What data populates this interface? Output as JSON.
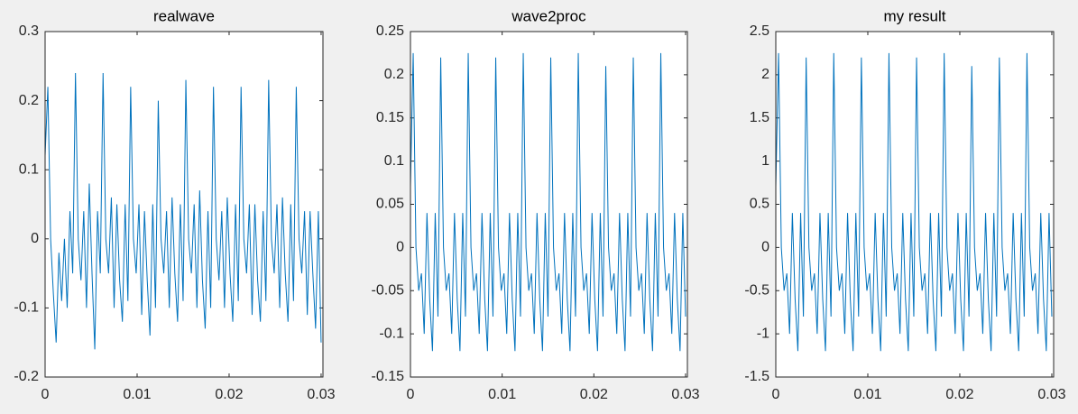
{
  "chart_data": [
    {
      "type": "line",
      "title": "realwave",
      "x": [
        0,
        0.0003,
        0.0006,
        0.0009,
        0.0012,
        0.0015,
        0.0018,
        0.0021,
        0.0024,
        0.0027,
        0.003,
        0.0033,
        0.0036,
        0.0039,
        0.0042,
        0.0045,
        0.0048,
        0.0051,
        0.0054,
        0.0057,
        0.006,
        0.0063,
        0.0066,
        0.0069,
        0.0072,
        0.0075,
        0.0078,
        0.0081,
        0.0084,
        0.0087,
        0.009,
        0.0093,
        0.0096,
        0.0099,
        0.0102,
        0.0105,
        0.0108,
        0.0111,
        0.0114,
        0.0117,
        0.012,
        0.0123,
        0.0126,
        0.0129,
        0.0132,
        0.0135,
        0.0138,
        0.0141,
        0.0144,
        0.0147,
        0.015,
        0.0153,
        0.0156,
        0.0159,
        0.0162,
        0.0165,
        0.0168,
        0.0171,
        0.0174,
        0.0177,
        0.018,
        0.0183,
        0.0186,
        0.0189,
        0.0192,
        0.0195,
        0.0198,
        0.0201,
        0.0204,
        0.0207,
        0.021,
        0.0213,
        0.0216,
        0.0219,
        0.0222,
        0.0225,
        0.0228,
        0.0231,
        0.0234,
        0.0237,
        0.024,
        0.0243,
        0.0246,
        0.0249,
        0.0252,
        0.0255,
        0.0258,
        0.0261,
        0.0264,
        0.0267,
        0.027,
        0.0273,
        0.0276,
        0.0279,
        0.0282,
        0.0285,
        0.0288,
        0.0291,
        0.0294,
        0.0297,
        0.03
      ],
      "series": [
        {
          "name": "realwave",
          "color": "#0072bd",
          "values": [
            0.12,
            0.22,
            0.0,
            -0.08,
            -0.15,
            -0.02,
            -0.09,
            0.0,
            -0.1,
            0.04,
            -0.05,
            0.24,
            0.0,
            -0.06,
            0.04,
            -0.1,
            0.08,
            -0.05,
            -0.16,
            0.04,
            -0.05,
            0.24,
            0.0,
            -0.05,
            0.06,
            -0.1,
            0.05,
            -0.06,
            -0.12,
            0.05,
            -0.09,
            0.22,
            0.0,
            -0.05,
            0.05,
            -0.11,
            0.04,
            -0.06,
            -0.14,
            0.05,
            -0.1,
            0.2,
            0.0,
            -0.05,
            0.04,
            -0.1,
            0.06,
            -0.05,
            -0.12,
            0.05,
            -0.09,
            0.23,
            0.0,
            -0.05,
            0.05,
            -0.1,
            0.07,
            -0.06,
            -0.13,
            0.04,
            -0.1,
            0.22,
            0.0,
            -0.06,
            0.04,
            -0.1,
            0.06,
            -0.05,
            -0.12,
            0.05,
            -0.09,
            0.22,
            0.0,
            -0.05,
            0.05,
            -0.11,
            0.05,
            -0.06,
            -0.12,
            0.04,
            -0.09,
            0.23,
            0.0,
            -0.05,
            0.05,
            -0.1,
            0.06,
            -0.05,
            -0.12,
            0.05,
            -0.09,
            0.22,
            0.0,
            -0.05,
            0.04,
            -0.11,
            0.04,
            -0.05,
            -0.13,
            0.04,
            -0.15
          ]
        }
      ],
      "xlim": [
        0,
        0.0302
      ],
      "ylim": [
        -0.2,
        0.3
      ],
      "xticks": [
        0,
        0.01,
        0.02,
        0.03
      ],
      "yticks": [
        -0.2,
        -0.1,
        0,
        0.1,
        0.2,
        0.3
      ]
    },
    {
      "type": "line",
      "title": "wave2proc",
      "x": [
        0,
        0.0003,
        0.0006,
        0.0009,
        0.0012,
        0.0015,
        0.0018,
        0.0021,
        0.0024,
        0.0027,
        0.003,
        0.0033,
        0.0036,
        0.0039,
        0.0042,
        0.0045,
        0.0048,
        0.0051,
        0.0054,
        0.0057,
        0.006,
        0.0063,
        0.0066,
        0.0069,
        0.0072,
        0.0075,
        0.0078,
        0.0081,
        0.0084,
        0.0087,
        0.009,
        0.0093,
        0.0096,
        0.0099,
        0.0102,
        0.0105,
        0.0108,
        0.0111,
        0.0114,
        0.0117,
        0.012,
        0.0123,
        0.0126,
        0.0129,
        0.0132,
        0.0135,
        0.0138,
        0.0141,
        0.0144,
        0.0147,
        0.015,
        0.0153,
        0.0156,
        0.0159,
        0.0162,
        0.0165,
        0.0168,
        0.0171,
        0.0174,
        0.0177,
        0.018,
        0.0183,
        0.0186,
        0.0189,
        0.0192,
        0.0195,
        0.0198,
        0.0201,
        0.0204,
        0.0207,
        0.021,
        0.0213,
        0.0216,
        0.0219,
        0.0222,
        0.0225,
        0.0228,
        0.0231,
        0.0234,
        0.0237,
        0.024,
        0.0243,
        0.0246,
        0.0249,
        0.0252,
        0.0255,
        0.0258,
        0.0261,
        0.0264,
        0.0267,
        0.027,
        0.0273,
        0.0276,
        0.0279,
        0.0282,
        0.0285,
        0.0288,
        0.0291,
        0.0294,
        0.0297,
        0.03
      ],
      "series": [
        {
          "name": "wave2proc",
          "color": "#0072bd",
          "values": [
            0.07,
            0.225,
            0.0,
            -0.05,
            -0.03,
            -0.1,
            0.04,
            -0.06,
            -0.12,
            0.04,
            -0.08,
            0.22,
            0.0,
            -0.05,
            -0.03,
            -0.1,
            0.04,
            -0.06,
            -0.12,
            0.04,
            -0.08,
            0.225,
            0.0,
            -0.05,
            -0.03,
            -0.1,
            0.04,
            -0.06,
            -0.12,
            0.04,
            -0.08,
            0.22,
            0.0,
            -0.05,
            -0.03,
            -0.1,
            0.04,
            -0.06,
            -0.12,
            0.04,
            -0.08,
            0.225,
            0.0,
            -0.05,
            -0.03,
            -0.1,
            0.04,
            -0.06,
            -0.12,
            0.04,
            -0.08,
            0.22,
            0.0,
            -0.05,
            -0.03,
            -0.1,
            0.04,
            -0.06,
            -0.12,
            0.04,
            -0.08,
            0.225,
            0.0,
            -0.05,
            -0.03,
            -0.1,
            0.04,
            -0.06,
            -0.12,
            0.04,
            -0.08,
            0.21,
            0.0,
            -0.05,
            -0.03,
            -0.1,
            0.04,
            -0.06,
            -0.12,
            0.04,
            -0.08,
            0.22,
            0.0,
            -0.05,
            -0.03,
            -0.1,
            0.04,
            -0.06,
            -0.12,
            0.04,
            -0.08,
            0.225,
            0.0,
            -0.05,
            -0.03,
            -0.1,
            0.04,
            -0.06,
            -0.12,
            0.04,
            -0.08
          ]
        }
      ],
      "xlim": [
        0,
        0.0302
      ],
      "ylim": [
        -0.15,
        0.25
      ],
      "xticks": [
        0,
        0.01,
        0.02,
        0.03
      ],
      "yticks": [
        -0.15,
        -0.1,
        -0.05,
        0,
        0.05,
        0.1,
        0.15,
        0.2,
        0.25
      ]
    },
    {
      "type": "line",
      "title": "my result",
      "x": [
        0,
        0.0003,
        0.0006,
        0.0009,
        0.0012,
        0.0015,
        0.0018,
        0.0021,
        0.0024,
        0.0027,
        0.003,
        0.0033,
        0.0036,
        0.0039,
        0.0042,
        0.0045,
        0.0048,
        0.0051,
        0.0054,
        0.0057,
        0.006,
        0.0063,
        0.0066,
        0.0069,
        0.0072,
        0.0075,
        0.0078,
        0.0081,
        0.0084,
        0.0087,
        0.009,
        0.0093,
        0.0096,
        0.0099,
        0.0102,
        0.0105,
        0.0108,
        0.0111,
        0.0114,
        0.0117,
        0.012,
        0.0123,
        0.0126,
        0.0129,
        0.0132,
        0.0135,
        0.0138,
        0.0141,
        0.0144,
        0.0147,
        0.015,
        0.0153,
        0.0156,
        0.0159,
        0.0162,
        0.0165,
        0.0168,
        0.0171,
        0.0174,
        0.0177,
        0.018,
        0.0183,
        0.0186,
        0.0189,
        0.0192,
        0.0195,
        0.0198,
        0.0201,
        0.0204,
        0.0207,
        0.021,
        0.0213,
        0.0216,
        0.0219,
        0.0222,
        0.0225,
        0.0228,
        0.0231,
        0.0234,
        0.0237,
        0.024,
        0.0243,
        0.0246,
        0.0249,
        0.0252,
        0.0255,
        0.0258,
        0.0261,
        0.0264,
        0.0267,
        0.027,
        0.0273,
        0.0276,
        0.0279,
        0.0282,
        0.0285,
        0.0288,
        0.0291,
        0.0294,
        0.0297,
        0.03
      ],
      "series": [
        {
          "name": "my result",
          "color": "#0072bd",
          "values": [
            0.7,
            2.25,
            0.0,
            -0.5,
            -0.3,
            -1.0,
            0.4,
            -0.6,
            -1.2,
            0.4,
            -0.8,
            2.2,
            0.0,
            -0.5,
            -0.3,
            -1.0,
            0.4,
            -0.6,
            -1.2,
            0.4,
            -0.8,
            2.25,
            0.0,
            -0.5,
            -0.3,
            -1.0,
            0.4,
            -0.6,
            -1.2,
            0.4,
            -0.8,
            2.2,
            0.0,
            -0.5,
            -0.3,
            -1.0,
            0.4,
            -0.6,
            -1.2,
            0.4,
            -0.8,
            2.25,
            0.0,
            -0.5,
            -0.3,
            -1.0,
            0.4,
            -0.6,
            -1.2,
            0.4,
            -0.8,
            2.2,
            0.0,
            -0.5,
            -0.3,
            -1.0,
            0.4,
            -0.6,
            -1.2,
            0.4,
            -0.8,
            2.25,
            0.0,
            -0.5,
            -0.3,
            -1.0,
            0.4,
            -0.6,
            -1.2,
            0.4,
            -0.8,
            2.1,
            0.0,
            -0.5,
            -0.3,
            -1.0,
            0.4,
            -0.6,
            -1.2,
            0.4,
            -0.8,
            2.2,
            0.0,
            -0.5,
            -0.3,
            -1.0,
            0.4,
            -0.6,
            -1.2,
            0.4,
            -0.8,
            2.25,
            0.0,
            -0.5,
            -0.3,
            -1.0,
            0.4,
            -0.6,
            -1.2,
            0.4,
            -0.8
          ]
        }
      ],
      "xlim": [
        0,
        0.0302
      ],
      "ylim": [
        -1.5,
        2.5
      ],
      "xticks": [
        0,
        0.01,
        0.02,
        0.03
      ],
      "yticks": [
        -1.5,
        -1,
        -0.5,
        0,
        0.5,
        1,
        1.5,
        2,
        2.5
      ]
    }
  ]
}
